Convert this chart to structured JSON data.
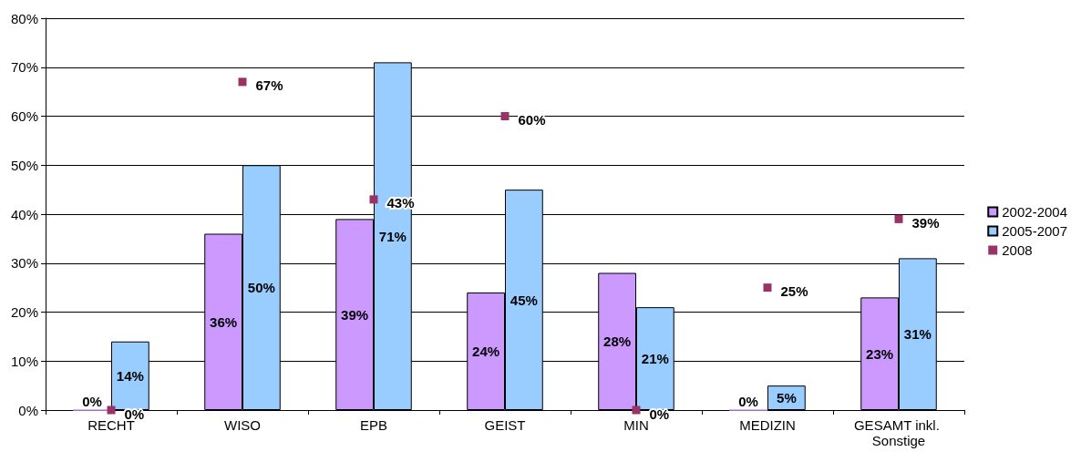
{
  "chart_data": {
    "type": "bar",
    "categories": [
      "RECHT",
      "WISO",
      "EPB",
      "GEIST",
      "MIN",
      "MEDIZIN",
      "GESAMT inkl. Sonstige"
    ],
    "series": [
      {
        "name": "2002-2004",
        "color": "#cc99ff",
        "values": [
          0,
          36,
          39,
          24,
          28,
          0,
          23
        ],
        "value_labels": [
          "0%",
          "36%",
          "39%",
          "24%",
          "28%",
          "0%",
          "23%"
        ]
      },
      {
        "name": "2005-2007",
        "color": "#99ccff",
        "values": [
          14,
          50,
          71,
          45,
          21,
          5,
          31
        ],
        "value_labels": [
          "14%",
          "50%",
          "71%",
          "45%",
          "21%",
          "5%",
          "31%"
        ]
      },
      {
        "name": "2008",
        "type": "scatter",
        "color": "#993366",
        "x": [
          "RECHT",
          "WISO",
          "EPB",
          "GEIST",
          "MIN",
          "MEDIZIN",
          "GESAMT inkl. Sonstige"
        ],
        "values": [
          0,
          67,
          43,
          60,
          0,
          25,
          39
        ],
        "value_labels": [
          "0%",
          "67%",
          "43%",
          "60%",
          "0%",
          "25%",
          "39%"
        ],
        "marker": "square"
      }
    ],
    "ylim": [
      0,
      80
    ],
    "yticks": [
      {
        "value": 0,
        "label": "0%"
      },
      {
        "value": 10,
        "label": "10%"
      },
      {
        "value": 20,
        "label": "20%"
      },
      {
        "value": 30,
        "label": "30%"
      },
      {
        "value": 40,
        "label": "40%"
      },
      {
        "value": 50,
        "label": "50%"
      },
      {
        "value": 60,
        "label": "60%"
      },
      {
        "value": 70,
        "label": "70%"
      },
      {
        "value": 80,
        "label": "80%"
      }
    ],
    "grid": "y",
    "legend": "right"
  }
}
